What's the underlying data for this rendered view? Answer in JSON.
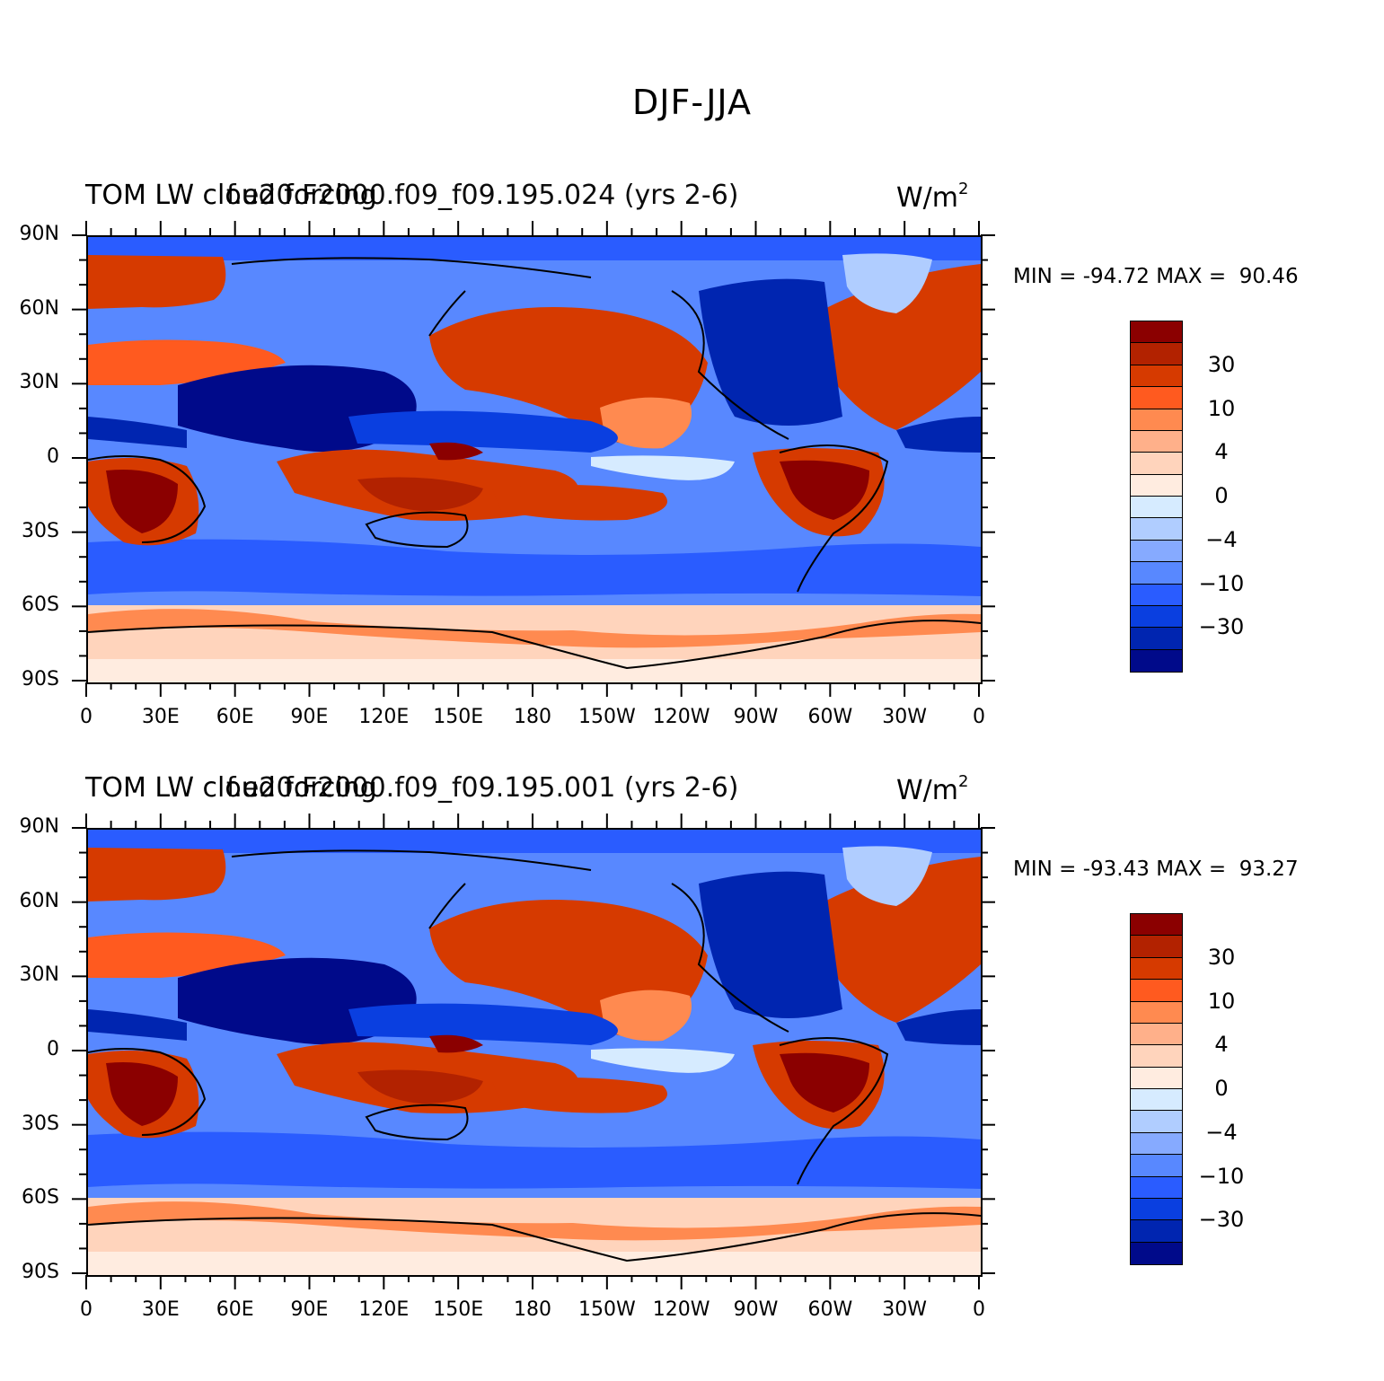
{
  "main_title": "DJF-JJA",
  "colors": {
    "scale": [
      "#8b0000",
      "#b22200",
      "#d63a00",
      "#ff5a1f",
      "#ff8a50",
      "#ffb08a",
      "#ffd4bc",
      "#ffece0",
      "#d6ebff",
      "#b0cdff",
      "#86aaff",
      "#5888ff",
      "#2a5cff",
      "#0a3fe0",
      "#0025b0",
      "#000a8a"
    ],
    "coast": "#000000"
  },
  "colorbar_labels": [
    "30",
    "10",
    "4",
    "0",
    "-4",
    "-10",
    "-30"
  ],
  "y_axis_labels": [
    "90N",
    "60N",
    "30N",
    "0",
    "30S",
    "60S",
    "90S"
  ],
  "x_axis_labels": [
    "0",
    "30E",
    "60E",
    "90E",
    "120E",
    "150E",
    "180",
    "150W",
    "120W",
    "90W",
    "60W",
    "30W",
    "0"
  ],
  "panels": [
    {
      "title_left": "TOM LW cloud forcing",
      "title_center": "f.e20.F2000.f09_f09.195.024 (yrs 2-6)",
      "title_units": "W/m",
      "title_units_exp": "2",
      "min_text": "MIN = -94.72",
      "max_text": "MAX =  90.46"
    },
    {
      "title_left": "TOM LW cloud forcing",
      "title_center": "f.e20.F2000.f09_f09.195.001 (yrs 2-6)",
      "title_units": "W/m",
      "title_units_exp": "2",
      "min_text": "MIN = -93.43",
      "max_text": "MAX =  93.27"
    }
  ]
}
